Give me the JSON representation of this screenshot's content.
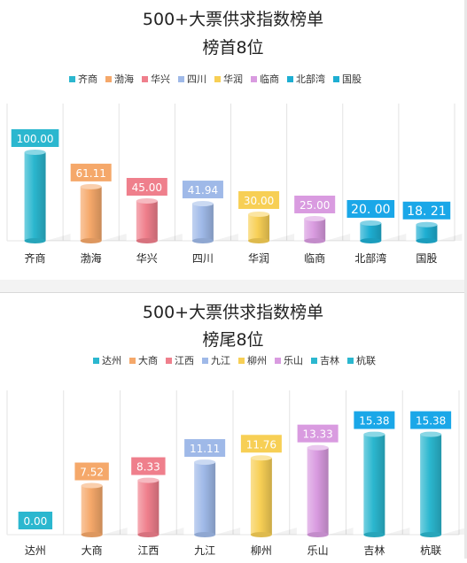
{
  "chart_data": [
    {
      "type": "bar",
      "title": "500+大票供求指数榜单",
      "subtitle": "榜首8位",
      "legend_position": "top",
      "categories": [
        "齐商",
        "渤海",
        "华兴",
        "四川",
        "华润",
        "临商",
        "北部湾",
        "国股"
      ],
      "values": [
        100.0,
        61.11,
        45.0,
        41.94,
        30.0,
        25.0,
        20.0,
        18.21
      ],
      "value_labels": [
        "100.00",
        "61.11",
        "45.00",
        "41.94",
        "30.00",
        "25.00",
        "20. 00",
        "18. 21"
      ],
      "colors": [
        "#2bb7cf",
        "#f5a86a",
        "#ef7f8c",
        "#9fb9e8",
        "#f7cf55",
        "#d99be0",
        "#1eaed2",
        "#1eaed2"
      ],
      "label_bg": [
        "#2bb7cf",
        "#f5a86a",
        "#ef7f8c",
        "#9fb9e8",
        "#f7cf55",
        "#d99be0",
        "#1aa7e8",
        "#1aa7e8"
      ],
      "ylim": [
        0,
        100
      ],
      "grid": "vertical separators"
    },
    {
      "type": "bar",
      "title": "500+大票供求指数榜单",
      "subtitle": "榜尾8位",
      "legend_position": "top",
      "categories": [
        "达州",
        "大商",
        "江西",
        "九江",
        "柳州",
        "乐山",
        "吉林",
        "杭联"
      ],
      "values": [
        0.0,
        7.52,
        8.33,
        11.11,
        11.76,
        13.33,
        15.38,
        15.38
      ],
      "value_labels": [
        "0.00",
        "7.52",
        "8.33",
        "11.11",
        "11.76",
        "13.33",
        "15.38",
        "15.38"
      ],
      "colors": [
        "#2bb7cf",
        "#f5a86a",
        "#ef7f8c",
        "#9fb9e8",
        "#f7cf55",
        "#d99be0",
        "#2bb7cf",
        "#2bb7cf"
      ],
      "label_bg": [
        "#2bb7cf",
        "#f5a86a",
        "#ef7f8c",
        "#9fb9e8",
        "#f7cf55",
        "#d99be0",
        "#1aa7e8",
        "#1aa7e8"
      ],
      "ylim": [
        0,
        16
      ],
      "grid": "vertical separators"
    }
  ]
}
